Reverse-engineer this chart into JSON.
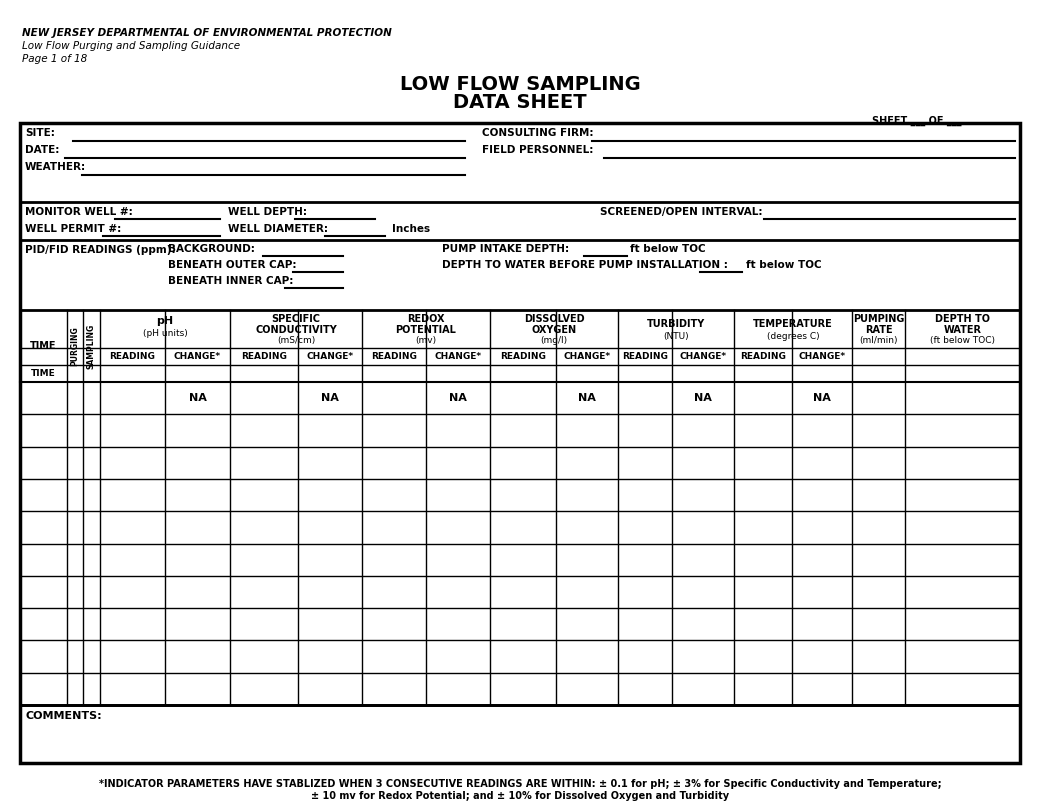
{
  "title_line1": "LOW FLOW SAMPLING",
  "title_line2": "DATA SHEET",
  "header_line1": "NEW JERSEY DEPARTMENTAL OF ENVIRONMENTAL PROTECTION",
  "header_line2": "Low Flow Purging and Sampling Guidance",
  "header_line3": "Page 1 of 18",
  "sheet_label": "SHEET ___ OF ___",
  "site": "SITE:",
  "date": "DATE:",
  "weather": "WEATHER:",
  "consulting_firm": "CONSULTING FIRM:",
  "field_personnel": "FIELD PERSONNEL:",
  "monitor_well": "MONITOR WELL #:",
  "well_depth": "WELL DEPTH:",
  "screened_interval": "SCREENED/OPEN INTERVAL:",
  "well_permit": "WELL PERMIT #:",
  "well_diameter": "WELL DIAMETER:",
  "inches": "Inches",
  "pid_fid": "PID/FID READINGS (ppm):",
  "background": "BACKGROUND:",
  "beneath_outer": "BENEATH OUTER CAP:",
  "beneath_inner": "BENEATH INNER CAP:",
  "pump_intake": "PUMP INTAKE DEPTH:",
  "pump_intake_blank": "_____",
  "pump_intake_unit": "ft below TOC",
  "depth_to_water_label": "DEPTH TO WATER BEFORE PUMP INSTALLATION :",
  "depth_to_water_blank": "_____",
  "depth_to_water_unit": "ft below TOC",
  "comments": "COMMENTS:",
  "na_text": "NA",
  "footer1": "*INDICATOR PARAMETERS HAVE STABLIZED WHEN 3 CONSECUTIVE READINGS ARE WITHIN: ± 0.1 for pH; ± 3% for Specific Conductivity and Temperature;",
  "footer2": "± 10 mv for Redox Potential; and ± 10% for Dissolved Oxygen and Turbidity",
  "col_time": "TIME",
  "col_purging": "PURGING",
  "col_sampling": "SAMPLING",
  "col_ph1": "pH",
  "col_ph2": "(pH units)",
  "col_sc1": "SPECIFIC",
  "col_sc2": "CONDUCTIVITY",
  "col_sc3": "(mS/cm)",
  "col_redox1": "REDOX",
  "col_redox2": "POTENTIAL",
  "col_redox3": "(mv)",
  "col_do1": "DISSOLVED",
  "col_do2": "OXYGEN",
  "col_do3": "(mg/l)",
  "col_turb1": "TURBIDITY",
  "col_turb2": "(NTU)",
  "col_temp1": "TEMPERATURE",
  "col_temp2": "(degrees C)",
  "col_pump1": "PUMPING",
  "col_pump2": "RATE",
  "col_pump3": "(ml/min)",
  "col_depth1": "DEPTH TO",
  "col_depth2": "WATER",
  "col_depth3": "(ft below TOC)",
  "col_reading": "READING",
  "col_change": "CHANGE*",
  "bg_color": "#ffffff"
}
